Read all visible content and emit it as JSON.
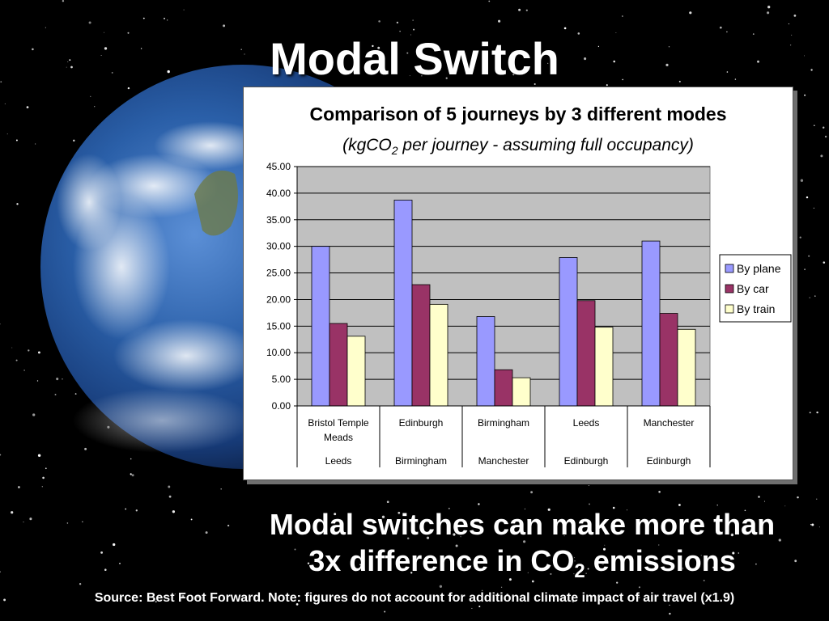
{
  "slide": {
    "title": "Modal Switch",
    "caption_line1": "Modal switches can make more than",
    "caption_line2_pre": "3x difference in CO",
    "caption_line2_sub": "2",
    "caption_line2_post": " emissions",
    "source": "Source:  Best Foot Forward. Note: figures do not account for additional climate impact of air travel (x1.9)"
  },
  "chart_data": {
    "type": "bar",
    "title": "Comparison of 5 journeys by 3 different modes",
    "subtitle_pre": "(kgCO",
    "subtitle_sub": "2",
    "subtitle_post": " per journey - assuming full occupancy)",
    "categories": [
      {
        "from": "Bristol Temple Meads",
        "to": "Leeds"
      },
      {
        "from": "Edinburgh",
        "to": "Birmingham"
      },
      {
        "from": "Birmingham",
        "to": "Manchester"
      },
      {
        "from": "Leeds",
        "to": "Edinburgh"
      },
      {
        "from": "Manchester",
        "to": "Edinburgh"
      }
    ],
    "series": [
      {
        "name": "By plane",
        "color": "#9999ff",
        "values": [
          30.0,
          38.7,
          16.8,
          27.9,
          31.0
        ]
      },
      {
        "name": "By car",
        "color": "#993366",
        "values": [
          15.5,
          22.8,
          6.8,
          19.8,
          17.4
        ]
      },
      {
        "name": "By train",
        "color": "#ffffcc",
        "values": [
          13.1,
          19.1,
          5.3,
          14.8,
          14.4
        ]
      }
    ],
    "ylim": [
      0,
      45
    ],
    "yticks": [
      "0.00",
      "5.00",
      "10.00",
      "15.00",
      "20.00",
      "25.00",
      "30.00",
      "35.00",
      "40.00",
      "45.00"
    ],
    "plot_background": "#c0c0c0",
    "grid": true,
    "legend_position": "right"
  }
}
